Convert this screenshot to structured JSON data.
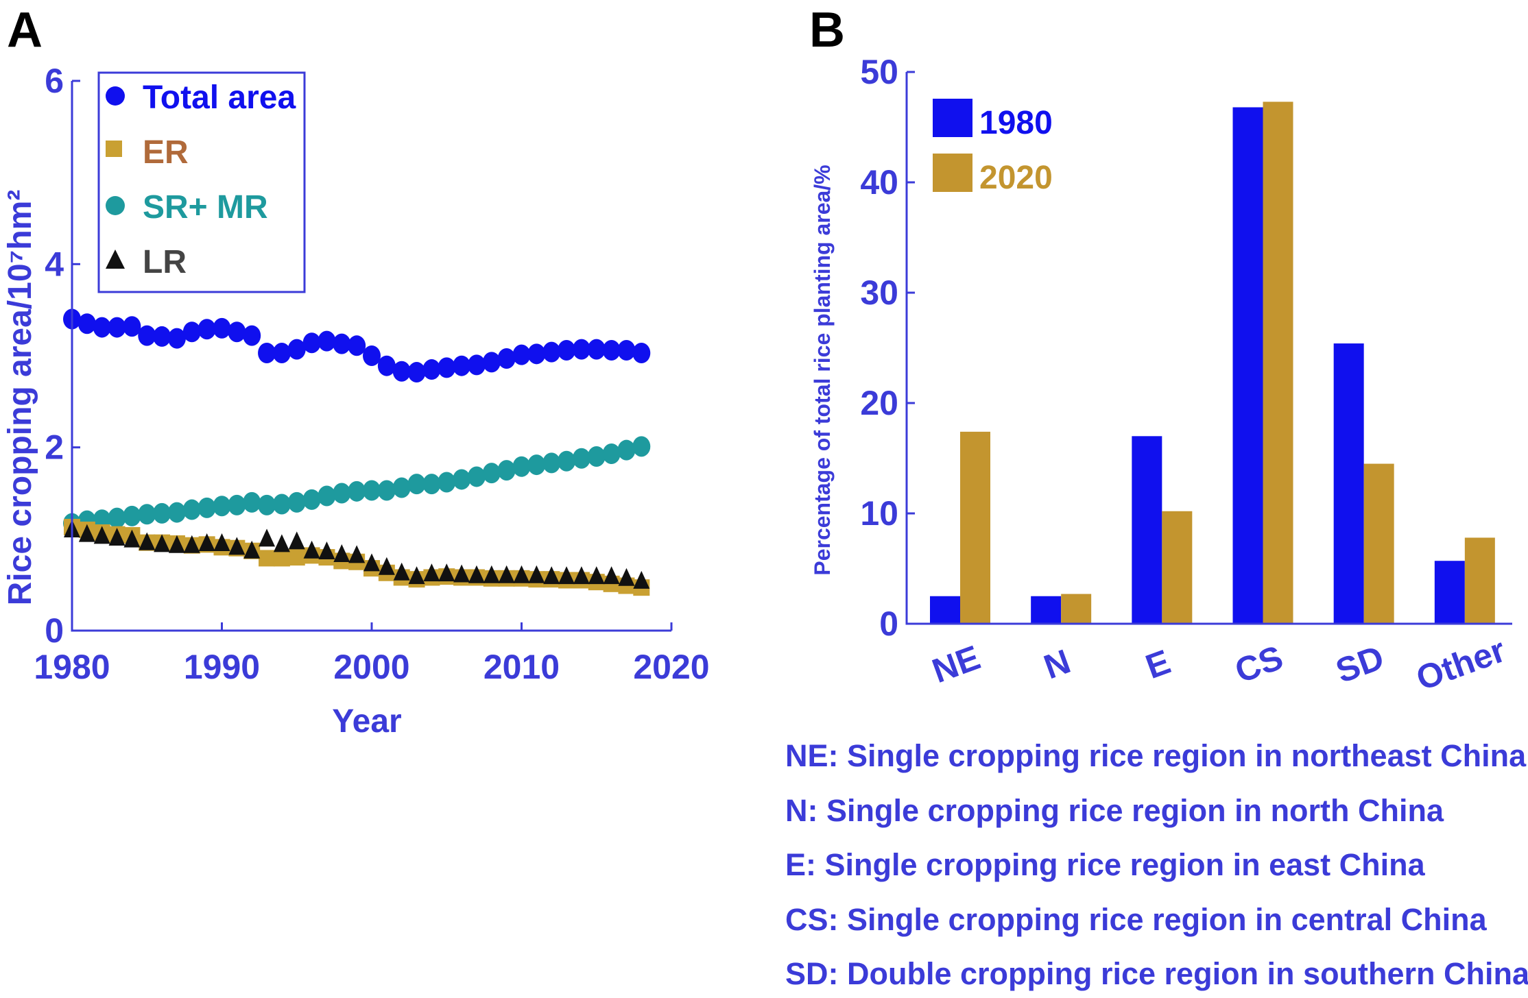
{
  "panels": {
    "a": "A",
    "b": "B"
  },
  "colors": {
    "total": "#1010ee",
    "er": "#c9a032",
    "sr_mr": "#1e9a9e",
    "lr": "#111111",
    "axis": "#3b3bd8",
    "er_legend_text": "#b06a3a",
    "bar1980": "#1010ee",
    "bar2020": "#c3952f"
  },
  "chart_data": [
    {
      "type": "scatter",
      "title": "",
      "xlabel": "Year",
      "ylabel": "Rice cropping area/10⁷hm²",
      "xlim": [
        1980,
        2020
      ],
      "ylim": [
        0,
        6
      ],
      "xticks": [
        "1980",
        "1990",
        "2000",
        "2010",
        "2020"
      ],
      "yticks": [
        "0",
        "2",
        "4",
        "6"
      ],
      "legend": [
        "Total area",
        "ER",
        "SR+ MR",
        "LR"
      ],
      "x": [
        1980,
        1981,
        1982,
        1983,
        1984,
        1985,
        1986,
        1987,
        1988,
        1989,
        1990,
        1991,
        1992,
        1993,
        1994,
        1995,
        1996,
        1997,
        1998,
        1999,
        2000,
        2001,
        2002,
        2003,
        2004,
        2005,
        2006,
        2007,
        2008,
        2009,
        2010,
        2011,
        2012,
        2013,
        2014,
        2015,
        2016,
        2017,
        2018
      ],
      "series": [
        {
          "name": "Total area",
          "key": "total",
          "marker": "circle",
          "values": [
            3.4,
            3.35,
            3.31,
            3.31,
            3.32,
            3.22,
            3.21,
            3.19,
            3.26,
            3.29,
            3.3,
            3.26,
            3.22,
            3.03,
            3.03,
            3.07,
            3.14,
            3.16,
            3.13,
            3.11,
            3.0,
            2.89,
            2.83,
            2.82,
            2.85,
            2.87,
            2.89,
            2.9,
            2.93,
            2.97,
            3.01,
            3.02,
            3.04,
            3.06,
            3.07,
            3.07,
            3.06,
            3.06,
            3.03
          ]
        },
        {
          "name": "ER",
          "key": "er",
          "marker": "square",
          "values": [
            1.13,
            1.1,
            1.07,
            1.05,
            1.04,
            0.96,
            0.96,
            0.95,
            0.93,
            0.94,
            0.91,
            0.9,
            0.87,
            0.79,
            0.79,
            0.8,
            0.82,
            0.8,
            0.76,
            0.75,
            0.68,
            0.63,
            0.58,
            0.56,
            0.58,
            0.59,
            0.58,
            0.58,
            0.57,
            0.57,
            0.57,
            0.56,
            0.56,
            0.55,
            0.55,
            0.53,
            0.51,
            0.49,
            0.47
          ]
        },
        {
          "name": "SR+ MR",
          "key": "sr_mr",
          "marker": "circle",
          "values": [
            1.17,
            1.2,
            1.21,
            1.23,
            1.25,
            1.27,
            1.28,
            1.29,
            1.32,
            1.34,
            1.36,
            1.37,
            1.4,
            1.37,
            1.38,
            1.4,
            1.43,
            1.47,
            1.5,
            1.52,
            1.53,
            1.53,
            1.56,
            1.6,
            1.6,
            1.62,
            1.65,
            1.68,
            1.72,
            1.75,
            1.79,
            1.81,
            1.83,
            1.85,
            1.88,
            1.9,
            1.93,
            1.97,
            2.01
          ]
        },
        {
          "name": "LR",
          "key": "lr",
          "marker": "triangle",
          "values": [
            1.1,
            1.05,
            1.03,
            1.01,
            0.99,
            0.96,
            0.94,
            0.93,
            0.93,
            0.95,
            0.95,
            0.91,
            0.87,
            1.0,
            0.94,
            0.97,
            0.87,
            0.86,
            0.83,
            0.82,
            0.73,
            0.69,
            0.63,
            0.59,
            0.62,
            0.62,
            0.61,
            0.6,
            0.6,
            0.6,
            0.6,
            0.6,
            0.59,
            0.59,
            0.59,
            0.59,
            0.59,
            0.57,
            0.54
          ]
        }
      ]
    },
    {
      "type": "bar",
      "title": "",
      "xlabel": "",
      "ylabel": "Percentage of total rice planting area/%",
      "ylim": [
        0,
        50
      ],
      "yticks": [
        "0",
        "10",
        "20",
        "30",
        "40",
        "50"
      ],
      "categories": [
        "NE",
        "N",
        "E",
        "CS",
        "SD",
        "Other"
      ],
      "series": [
        {
          "name": "1980",
          "key": "bar1980",
          "values": [
            2.5,
            2.5,
            17.0,
            46.8,
            25.4,
            5.7
          ]
        },
        {
          "name": "2020",
          "key": "bar2020",
          "values": [
            17.4,
            2.7,
            10.2,
            47.3,
            14.5,
            7.8
          ]
        }
      ]
    }
  ],
  "abbreviations": [
    "NE: Single cropping rice region in northeast China",
    "N: Single cropping rice region in north China",
    "E: Single cropping rice region in east China",
    "CS: Single cropping rice region in central China",
    "SD: Double cropping rice region in southern China"
  ]
}
